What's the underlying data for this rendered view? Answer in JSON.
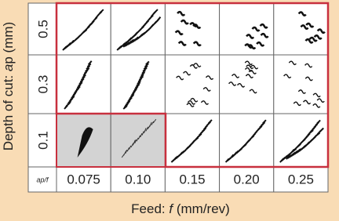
{
  "y_axis_label": {
    "prefix": "Depth of cut: ",
    "symbol": "a",
    "suffix": "p (mm)"
  },
  "row_labels": [
    "0.5",
    "0.3",
    "0.1"
  ],
  "corner_label": "ap/f",
  "column_labels": [
    "0.075",
    "0.10",
    "0.15",
    "0.20",
    "0.25"
  ],
  "x_axis_label": {
    "prefix": "Feed: ",
    "symbol": "f",
    "suffix": " (mm/rev)"
  }
}
